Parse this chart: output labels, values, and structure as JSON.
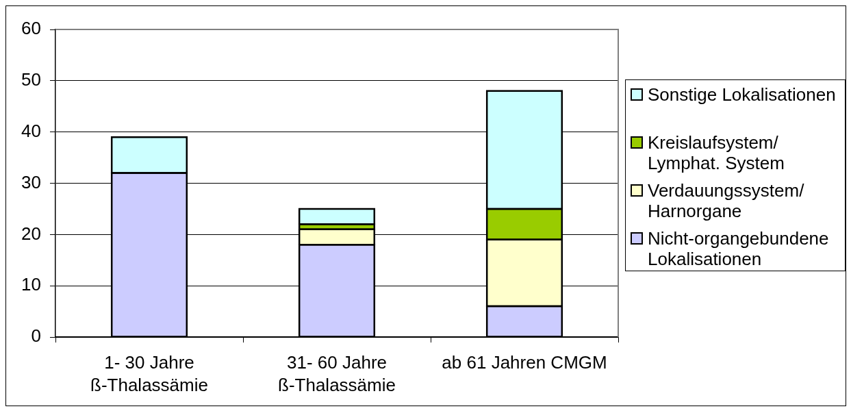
{
  "chart_data": {
    "type": "bar",
    "stacked": true,
    "categories": [
      "1- 30 Jahre\nß-Thalassämie",
      "31- 60 Jahre\nß-Thalassämie",
      "ab 61 Jahren CMGM"
    ],
    "series": [
      {
        "name": "Nicht-organgebundene Lokalisationen",
        "color": "#ccccff",
        "values": [
          32,
          18,
          6
        ]
      },
      {
        "name": "Verdauungssystem/ Harnorgane",
        "color": "#ffffcc",
        "values": [
          0,
          3,
          13
        ]
      },
      {
        "name": "Kreislaufsystem/ Lymphat. System",
        "color": "#99cc00",
        "values": [
          0,
          1,
          6
        ]
      },
      {
        "name": "Sonstige Lokalisationen",
        "color": "#ccffff",
        "values": [
          7,
          3,
          23
        ]
      }
    ],
    "ylim": [
      0,
      60
    ],
    "yticks": [
      0,
      10,
      20,
      30,
      40,
      50,
      60
    ],
    "grid": "y",
    "legend": "right"
  }
}
